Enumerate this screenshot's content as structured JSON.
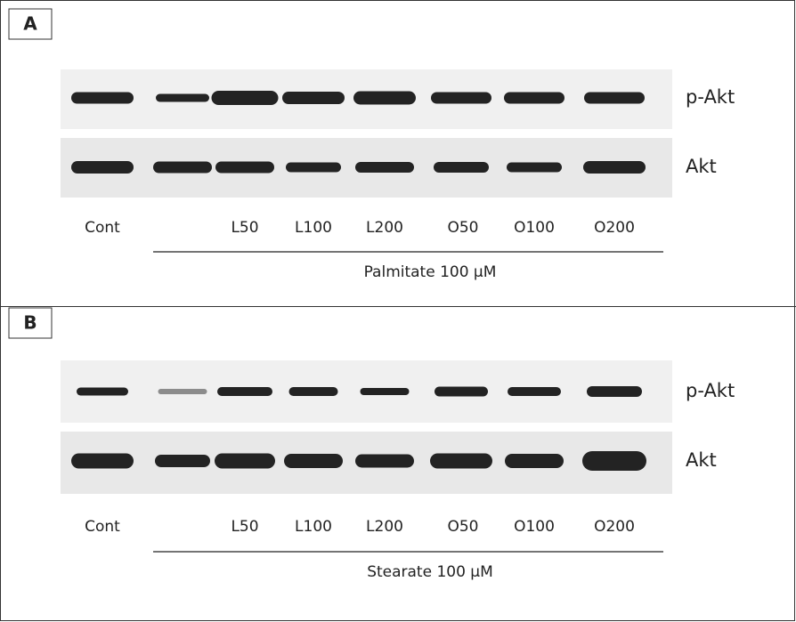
{
  "panels": [
    {
      "label": "A",
      "rows": [
        "p-Akt",
        "Akt"
      ],
      "lanes": [
        "Cont",
        "L50",
        "L100",
        "L200",
        "O50",
        "O100",
        "O200"
      ],
      "treatment": "Palmitate 100 µM"
    },
    {
      "label": "B",
      "rows": [
        "p-Akt",
        "Akt"
      ],
      "lanes": [
        "Cont",
        "L50",
        "L100",
        "L200",
        "O50",
        "O100",
        "O200"
      ],
      "treatment": "Stearate 100 µM"
    }
  ]
}
